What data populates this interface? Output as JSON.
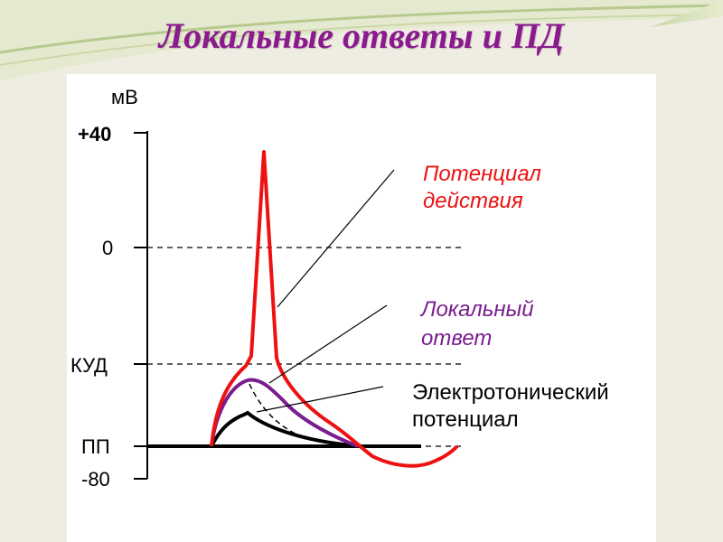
{
  "slide": {
    "title": "Локальные ответы и ПД",
    "colors": {
      "background": "#efede2",
      "title": "#8b1a8f",
      "action_potential": "#ee1111",
      "local_response": "#7a1d8e",
      "electrotonic": "#000000"
    }
  },
  "axis": {
    "unit": "мВ",
    "levels": [
      {
        "label": "+40",
        "value": 40
      },
      {
        "label": "0",
        "value": 0
      },
      {
        "label": "КУД",
        "value": -50
      },
      {
        "label": "ПП",
        "value": -70
      },
      {
        "label": "-80",
        "value": -80
      }
    ]
  },
  "labels": {
    "action_potential": [
      "Потенциал",
      "действия"
    ],
    "local_response": [
      "Локальный",
      "ответ"
    ],
    "electrotonic": [
      "Электротонический",
      "потенциал"
    ]
  }
}
